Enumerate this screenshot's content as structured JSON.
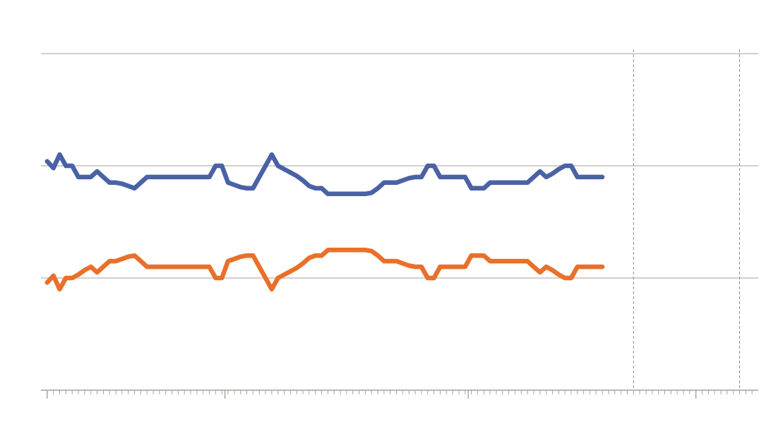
{
  "chart_data": {
    "type": "line",
    "title": "",
    "xlabel": "",
    "ylabel": "",
    "x": [
      0,
      1,
      2,
      3,
      4,
      5,
      6,
      7,
      8,
      9,
      10,
      11,
      12,
      13,
      14,
      15,
      16,
      17,
      18,
      19,
      20,
      21,
      22,
      23,
      24,
      25,
      26,
      27,
      28,
      29,
      30,
      31,
      32,
      33,
      34,
      35,
      36,
      37,
      38,
      39,
      40,
      41,
      42,
      43,
      44,
      45,
      46,
      47,
      48,
      49,
      50,
      51,
      52,
      53,
      54,
      55,
      56,
      57,
      58,
      59,
      60,
      61,
      62,
      63,
      64,
      65,
      66,
      67,
      68,
      69,
      70,
      71,
      72,
      73,
      74,
      75,
      76,
      77,
      78,
      79,
      80,
      81,
      82,
      83,
      84,
      85,
      86,
      87,
      88,
      89
    ],
    "xlim": [
      -1,
      114
    ],
    "ylim": [
      0,
      3
    ],
    "grid": true,
    "vertical_markers": [
      94,
      111
    ],
    "x_major_ticks": [
      0,
      28.5,
      67.5,
      104
    ],
    "colors": {
      "series1": "#4a62a5",
      "series2": "#e8702a",
      "grid": "#c5c1b8",
      "axis": "#a6a29a",
      "marker": "#8a8a8a"
    },
    "series": [
      {
        "color": "#4a62a5",
        "values": [
          2.04,
          1.98,
          2.1,
          2.0,
          2.0,
          1.9,
          1.9,
          1.9,
          1.95,
          1.9,
          1.85,
          1.85,
          1.84,
          1.82,
          1.8,
          1.85,
          1.9,
          1.9,
          1.9,
          1.9,
          1.9,
          1.9,
          1.9,
          1.9,
          1.9,
          1.9,
          1.9,
          2.0,
          2.0,
          1.85,
          1.83,
          1.81,
          1.8,
          1.8,
          1.9,
          2.0,
          2.1,
          2.0,
          1.97,
          1.94,
          1.91,
          1.87,
          1.82,
          1.8,
          1.8,
          1.75,
          1.75,
          1.75,
          1.75,
          1.75,
          1.75,
          1.75,
          1.76,
          1.8,
          1.85,
          1.85,
          1.85,
          1.87,
          1.89,
          1.9,
          1.9,
          2.0,
          2.0,
          1.9,
          1.9,
          1.9,
          1.9,
          1.9,
          1.8,
          1.8,
          1.8,
          1.85,
          1.85,
          1.85,
          1.85,
          1.85,
          1.85,
          1.85,
          1.9,
          1.95,
          1.9,
          1.93,
          1.97,
          2.0,
          2.0,
          1.9,
          1.9,
          1.9,
          1.9,
          1.9
        ]
      },
      {
        "color": "#e8702a",
        "values": [
          0.96,
          1.02,
          0.9,
          1.0,
          1.0,
          1.03,
          1.07,
          1.1,
          1.05,
          1.1,
          1.15,
          1.15,
          1.17,
          1.19,
          1.2,
          1.15,
          1.1,
          1.1,
          1.1,
          1.1,
          1.1,
          1.1,
          1.1,
          1.1,
          1.1,
          1.1,
          1.1,
          1.0,
          1.0,
          1.15,
          1.17,
          1.19,
          1.2,
          1.2,
          1.1,
          1.0,
          0.9,
          1.0,
          1.03,
          1.06,
          1.09,
          1.13,
          1.18,
          1.2,
          1.2,
          1.25,
          1.25,
          1.25,
          1.25,
          1.25,
          1.25,
          1.25,
          1.24,
          1.2,
          1.15,
          1.15,
          1.15,
          1.13,
          1.11,
          1.1,
          1.1,
          1.0,
          1.0,
          1.1,
          1.1,
          1.1,
          1.1,
          1.1,
          1.2,
          1.2,
          1.2,
          1.15,
          1.15,
          1.15,
          1.15,
          1.15,
          1.15,
          1.15,
          1.1,
          1.05,
          1.1,
          1.07,
          1.03,
          1.0,
          1.0,
          1.1,
          1.1,
          1.1,
          1.1,
          1.1
        ]
      }
    ]
  }
}
